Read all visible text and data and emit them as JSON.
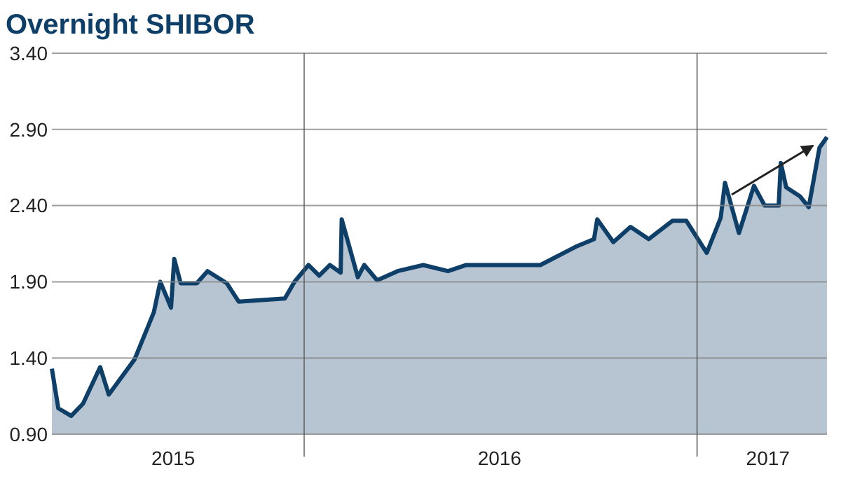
{
  "chart_data": {
    "type": "area",
    "title": "Overnight SHIBOR",
    "x": [
      "2015-05-11",
      "2015-05-17",
      "2015-05-29",
      "2015-06-09",
      "2015-06-25",
      "2015-07-03",
      "2015-07-27",
      "2015-08-14",
      "2015-08-20",
      "2015-08-30",
      "2015-09-02",
      "2015-09-08",
      "2015-09-23",
      "2015-10-03",
      "2015-10-21",
      "2015-11-01",
      "2015-12-14",
      "2015-12-23",
      "2016-01-05",
      "2016-01-15",
      "2016-01-25",
      "2016-02-04",
      "2016-02-05",
      "2016-02-20",
      "2016-02-26",
      "2016-03-09",
      "2016-03-28",
      "2016-04-21",
      "2016-05-14",
      "2016-05-31",
      "2016-08-08",
      "2016-09-10",
      "2016-09-27",
      "2016-09-30",
      "2016-10-15",
      "2016-10-31",
      "2016-11-17",
      "2016-12-09",
      "2016-12-22",
      "2017-01-10",
      "2017-01-23",
      "2017-01-27",
      "2017-02-09",
      "2017-02-23",
      "2017-03-05",
      "2017-03-18",
      "2017-03-20",
      "2017-03-25",
      "2017-04-07",
      "2017-04-15",
      "2017-04-25",
      "2017-05-02"
    ],
    "series": [
      {
        "color": "#0e3f69",
        "values": [
          1.33,
          1.07,
          1.02,
          1.1,
          1.34,
          1.16,
          1.39,
          1.7,
          1.9,
          1.73,
          2.05,
          1.89,
          1.89,
          1.97,
          1.89,
          1.77,
          1.79,
          1.9,
          2.01,
          1.94,
          2.01,
          1.96,
          2.31,
          1.93,
          2.01,
          1.91,
          1.97,
          2.01,
          1.97,
          2.01,
          2.01,
          2.13,
          2.18,
          2.31,
          2.16,
          2.26,
          2.18,
          2.3,
          2.3,
          2.09,
          2.32,
          2.55,
          2.22,
          2.53,
          2.4,
          2.4,
          2.68,
          2.52,
          2.46,
          2.39,
          2.78,
          2.85
        ]
      }
    ],
    "xlim": [
      "2015-05-11",
      "2017-05-02"
    ],
    "xticks": [
      {
        "value": "2015-09-01",
        "label": "2015"
      },
      {
        "value": "2016-07-01",
        "label": "2016"
      },
      {
        "value": "2017-03-08",
        "label": "2017"
      }
    ],
    "ylim": [
      0.9,
      3.4
    ],
    "yticks": [
      {
        "value": 0.9,
        "label": "0.90"
      },
      {
        "value": 1.4,
        "label": "1.40"
      },
      {
        "value": 1.9,
        "label": "1.90"
      },
      {
        "value": 2.4,
        "label": "2.40"
      },
      {
        "value": 2.9,
        "label": "2.90"
      },
      {
        "value": 3.4,
        "label": "3.40"
      }
    ],
    "ref_lines": [
      {
        "axis": "x",
        "value": "2016-01-01",
        "color": "#555555"
      },
      {
        "axis": "x",
        "value": "2017-01-01",
        "color": "#555555"
      }
    ],
    "grid": "y"
  }
}
